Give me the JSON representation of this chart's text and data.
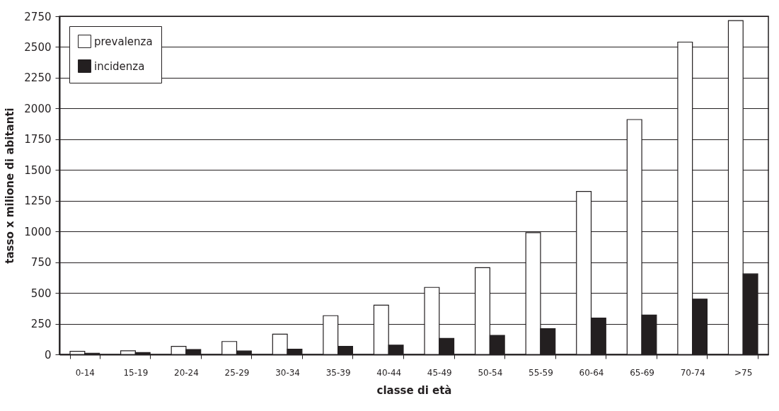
{
  "chart_data": {
    "type": "bar",
    "xlabel": "classe di età",
    "ylabel": "tasso x milione di abitanti",
    "categories": [
      "0-14",
      "15-19",
      "20-24",
      "25-29",
      "30-34",
      "35-39",
      "40-44",
      "45-49",
      "50-54",
      "55-59",
      "60-64",
      "65-69",
      "70-74",
      ">75"
    ],
    "series": [
      {
        "name": "prevalenza",
        "color": "#ffffff",
        "values": [
          25,
          30,
          65,
          105,
          165,
          315,
          400,
          545,
          705,
          990,
          1325,
          1910,
          2540,
          2715
        ]
      },
      {
        "name": "incidenza",
        "color": "#231f20",
        "values": [
          10,
          15,
          40,
          28,
          42,
          65,
          75,
          130,
          155,
          210,
          295,
          320,
          450,
          655
        ]
      }
    ],
    "ylim": [
      0,
      2750
    ],
    "yticks": [
      0,
      250,
      500,
      750,
      1000,
      1250,
      1500,
      1750,
      2000,
      2250,
      2500,
      2750
    ],
    "grid": "y",
    "legend": "top left"
  }
}
